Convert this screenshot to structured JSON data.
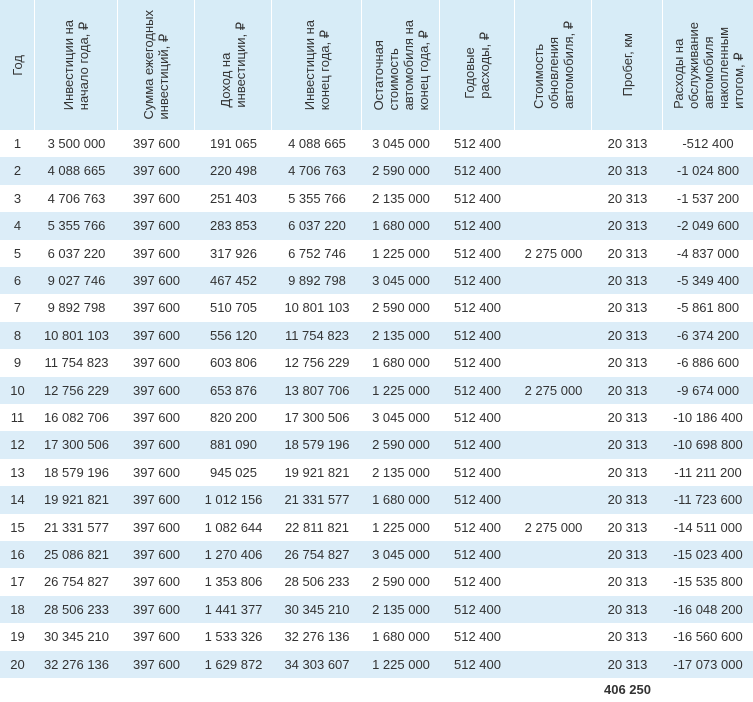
{
  "table": {
    "headers": [
      [
        "Год"
      ],
      [
        "Инвестиции на",
        "начало года, ₽"
      ],
      [
        "Сумма ежегодных",
        "инвестиций, ₽"
      ],
      [
        "Доход на",
        "инвестиции, ₽"
      ],
      [
        "Инвестиции на",
        "конец года, ₽"
      ],
      [
        "Остаточная",
        "стоимость",
        "автомобиля на",
        "конец года, ₽"
      ],
      [
        "Годовые",
        "расходы, ₽"
      ],
      [
        "Стоимость",
        "обновления",
        "автомобиля, ₽"
      ],
      [
        "Пробег, км"
      ],
      [
        "Расходы на",
        "обслуживание",
        "автомобиля",
        "накопленным",
        "итогом, ₽"
      ]
    ],
    "rows": [
      {
        "year": "1",
        "start": "3 500 000",
        "annual_investment": "397 600",
        "income": "191 065",
        "end": "4 088 665",
        "residual": "3 045 000",
        "annual_expenses": "512 400",
        "mileage": "20 313",
        "service_total": "-512 400"
      },
      {
        "year": "2",
        "start": "4 088 665",
        "annual_investment": "397 600",
        "income": "220 498",
        "end": "4 706 763",
        "residual": "2 590 000",
        "annual_expenses": "512 400",
        "mileage": "20 313",
        "service_total": "-1 024 800"
      },
      {
        "year": "3",
        "start": "4 706 763",
        "annual_investment": "397 600",
        "income": "251 403",
        "end": "5 355 766",
        "residual": "2 135 000",
        "annual_expenses": "512 400",
        "mileage": "20 313",
        "service_total": "-1 537 200"
      },
      {
        "year": "4",
        "start": "5 355 766",
        "annual_investment": "397 600",
        "income": "283 853",
        "end": "6 037 220",
        "residual": "1 680 000",
        "annual_expenses": "512 400",
        "mileage": "20 313",
        "service_total": "-2 049 600"
      },
      {
        "year": "5",
        "start": "6 037 220",
        "annual_investment": "397 600",
        "income": "317 926",
        "end": "6 752 746",
        "residual": "1 225 000",
        "annual_expenses": "512 400",
        "renewal": "2 275 000",
        "mileage": "20 313",
        "service_total": "-4 837 000"
      },
      {
        "year": "6",
        "start": "9 027 746",
        "annual_investment": "397 600",
        "income": "467 452",
        "end": "9 892 798",
        "residual": "3 045 000",
        "annual_expenses": "512 400",
        "mileage": "20 313",
        "service_total": "-5 349 400"
      },
      {
        "year": "7",
        "start": "9 892 798",
        "annual_investment": "397 600",
        "income": "510 705",
        "end": "10 801 103",
        "residual": "2 590 000",
        "annual_expenses": "512 400",
        "mileage": "20 313",
        "service_total": "-5 861 800"
      },
      {
        "year": "8",
        "start": "10 801 103",
        "annual_investment": "397 600",
        "income": "556 120",
        "end": "11 754 823",
        "residual": "2 135 000",
        "annual_expenses": "512 400",
        "mileage": "20 313",
        "service_total": "-6 374 200"
      },
      {
        "year": "9",
        "start": "11 754 823",
        "annual_investment": "397 600",
        "income": "603 806",
        "end": "12 756 229",
        "residual": "1 680 000",
        "annual_expenses": "512 400",
        "mileage": "20 313",
        "service_total": "-6 886 600"
      },
      {
        "year": "10",
        "start": "12 756 229",
        "annual_investment": "397 600",
        "income": "653 876",
        "end": "13 807 706",
        "residual": "1 225 000",
        "annual_expenses": "512 400",
        "renewal": "2 275 000",
        "mileage": "20 313",
        "service_total": "-9 674 000"
      },
      {
        "year": "11",
        "start": "16 082 706",
        "annual_investment": "397 600",
        "income": "820 200",
        "end": "17 300 506",
        "residual": "3 045 000",
        "annual_expenses": "512 400",
        "mileage": "20 313",
        "service_total": "-10 186 400"
      },
      {
        "year": "12",
        "start": "17 300 506",
        "annual_investment": "397 600",
        "income": "881 090",
        "end": "18 579 196",
        "residual": "2 590 000",
        "annual_expenses": "512 400",
        "mileage": "20 313",
        "service_total": "-10 698 800"
      },
      {
        "year": "13",
        "start": "18 579 196",
        "annual_investment": "397 600",
        "income": "945 025",
        "end": "19 921 821",
        "residual": "2 135 000",
        "annual_expenses": "512 400",
        "mileage": "20 313",
        "service_total": "-11 211 200"
      },
      {
        "year": "14",
        "start": "19 921 821",
        "annual_investment": "397 600",
        "income": "1 012 156",
        "end": "21 331 577",
        "residual": "1 680 000",
        "annual_expenses": "512 400",
        "mileage": "20 313",
        "service_total": "-11 723 600"
      },
      {
        "year": "15",
        "start": "21 331 577",
        "annual_investment": "397 600",
        "income": "1 082 644",
        "end": "22 811 821",
        "residual": "1 225 000",
        "annual_expenses": "512 400",
        "renewal": "2 275 000",
        "mileage": "20 313",
        "service_total": "-14 511 000"
      },
      {
        "year": "16",
        "start": "25 086 821",
        "annual_investment": "397 600",
        "income": "1 270 406",
        "end": "26 754 827",
        "residual": "3 045 000",
        "annual_expenses": "512 400",
        "mileage": "20 313",
        "service_total": "-15 023 400"
      },
      {
        "year": "17",
        "start": "26 754 827",
        "annual_investment": "397 600",
        "income": "1 353 806",
        "end": "28 506 233",
        "residual": "2 590 000",
        "annual_expenses": "512 400",
        "mileage": "20 313",
        "service_total": "-15 535 800"
      },
      {
        "year": "18",
        "start": "28 506 233",
        "annual_investment": "397 600",
        "income": "1 441 377",
        "end": "30 345 210",
        "residual": "2 135 000",
        "annual_expenses": "512 400",
        "mileage": "20 313",
        "service_total": "-16 048 200"
      },
      {
        "year": "19",
        "start": "30 345 210",
        "annual_investment": "397 600",
        "income": "1 533 326",
        "end": "32 276 136",
        "residual": "1 680 000",
        "annual_expenses": "512 400",
        "mileage": "20 313",
        "service_total": "-16 560 600"
      },
      {
        "year": "20",
        "start": "32 276 136",
        "annual_investment": "397 600",
        "income": "1 629 872",
        "end": "34 303 607",
        "residual": "1 225 000",
        "annual_expenses": "512 400",
        "mileage": "20 313",
        "service_total": "-17 073 000"
      }
    ],
    "total_mileage": "406 250"
  }
}
